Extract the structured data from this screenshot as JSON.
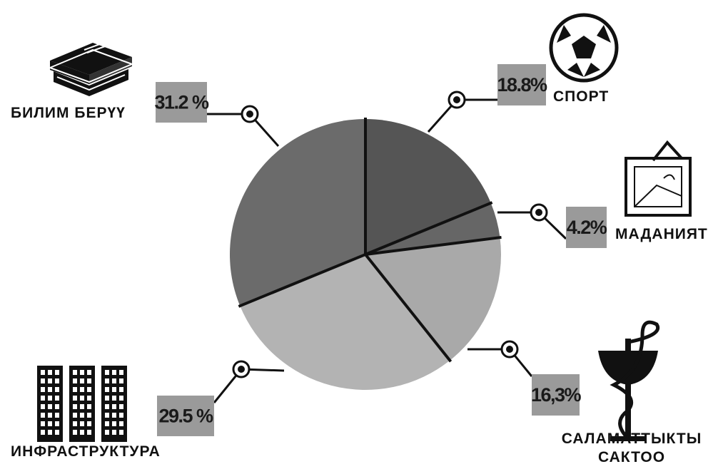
{
  "chart_data": {
    "type": "pie",
    "categories": [
      "СПОРТ",
      "МАДАНИЯТ",
      "САЛАМАТТЫКТЫ САКТОО",
      "ИНФРАСТРУКТУРА",
      "БИЛИМ БЕРҮҮ"
    ],
    "values": [
      18.8,
      4.2,
      16.3,
      29.5,
      31.2
    ],
    "value_labels": [
      "18.8%",
      "4.2%",
      "16,3%",
      "29.5 %",
      "31.2 %"
    ],
    "colors": [
      "#555555",
      "#666666",
      "#a9a9a9",
      "#b3b3b3",
      "#6b6b6b"
    ]
  }
}
